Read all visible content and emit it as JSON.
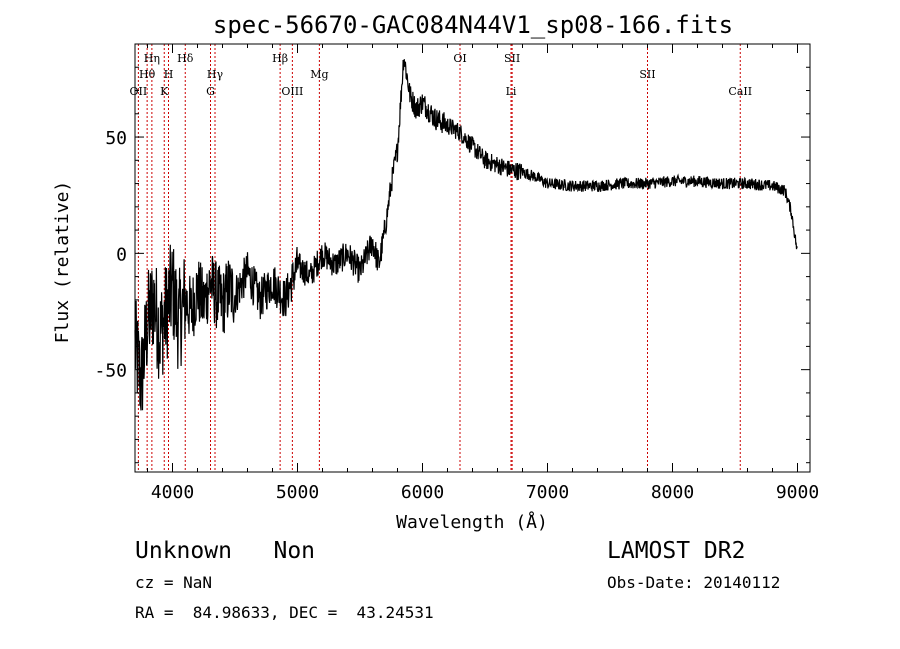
{
  "chart_data": {
    "type": "line",
    "title": "spec-56670-GAC084N44V1_sp08-166.fits",
    "xlabel": "Wavelength (Å)",
    "ylabel": "Flux (relative)",
    "xlim": [
      3700,
      9100
    ],
    "ylim": [
      -94,
      90
    ],
    "xticks": [
      4000,
      5000,
      6000,
      7000,
      8000,
      9000
    ],
    "yticks": [
      -50,
      0,
      50
    ],
    "grid": false,
    "line_color": "#000000",
    "marker_color": "#cc0000",
    "spectral_lines": [
      {
        "label": "Hη",
        "x": 3835,
        "row": 0
      },
      {
        "label": "Hθ",
        "x": 3797,
        "row": 1
      },
      {
        "label": "OII",
        "x": 3727,
        "row": 2
      },
      {
        "label": "H",
        "x": 3968,
        "row": 1
      },
      {
        "label": "K",
        "x": 3934,
        "row": 2
      },
      {
        "label": "Hδ",
        "x": 4102,
        "row": 0
      },
      {
        "label": "Hγ",
        "x": 4340,
        "row": 1
      },
      {
        "label": "G",
        "x": 4304,
        "row": 2
      },
      {
        "label": "Hβ",
        "x": 4861,
        "row": 0
      },
      {
        "label": "OIII",
        "x": 4959,
        "row": 2
      },
      {
        "label": "Mg",
        "x": 5175,
        "row": 1
      },
      {
        "label": "OI",
        "x": 6300,
        "row": 0
      },
      {
        "label": "SII",
        "x": 6717,
        "row": 0
      },
      {
        "label": "Li",
        "x": 6708,
        "row": 2
      },
      {
        "label": "SII",
        "x": 7800,
        "row": 1
      },
      {
        "label": "CaII",
        "x": 8542,
        "row": 2
      }
    ],
    "series": [
      {
        "x": [
          3700,
          3750,
          3800,
          3850,
          3900,
          3950,
          4000,
          4050,
          4100,
          4150,
          4200,
          4250,
          4300,
          4350,
          4400,
          4450,
          4500,
          4600,
          4700,
          4800,
          4900,
          5000,
          5100,
          5200,
          5300,
          5400,
          5500,
          5600,
          5650,
          5700,
          5750,
          5800,
          5850,
          5900,
          5950,
          6000,
          6100,
          6200,
          6300,
          6400,
          6500,
          6600,
          6700,
          6800,
          6900,
          7000,
          7200,
          7400,
          7600,
          7800,
          8000,
          8200,
          8400,
          8600,
          8800,
          8900,
          8950,
          9000
        ],
        "y": [
          -40,
          -55,
          -30,
          -20,
          -35,
          -25,
          -15,
          -30,
          -20,
          -25,
          -15,
          -22,
          -12,
          -18,
          -22,
          -15,
          -18,
          -8,
          -20,
          -12,
          -20,
          -5,
          -10,
          0,
          -5,
          0,
          -8,
          5,
          -5,
          10,
          30,
          45,
          85,
          68,
          62,
          65,
          58,
          55,
          52,
          46,
          40,
          38,
          36,
          35,
          33,
          30,
          29,
          29,
          30,
          30,
          31,
          31,
          30,
          30,
          29,
          27,
          18,
          0
        ]
      }
    ]
  },
  "info": {
    "class_text": "Unknown   Non",
    "cz_text": "cz = NaN",
    "radec_text": "RA =  84.98633, DEC =  43.24531",
    "survey_text": "LAMOST DR2",
    "obsdate_text": "Obs-Date: 20140112"
  }
}
